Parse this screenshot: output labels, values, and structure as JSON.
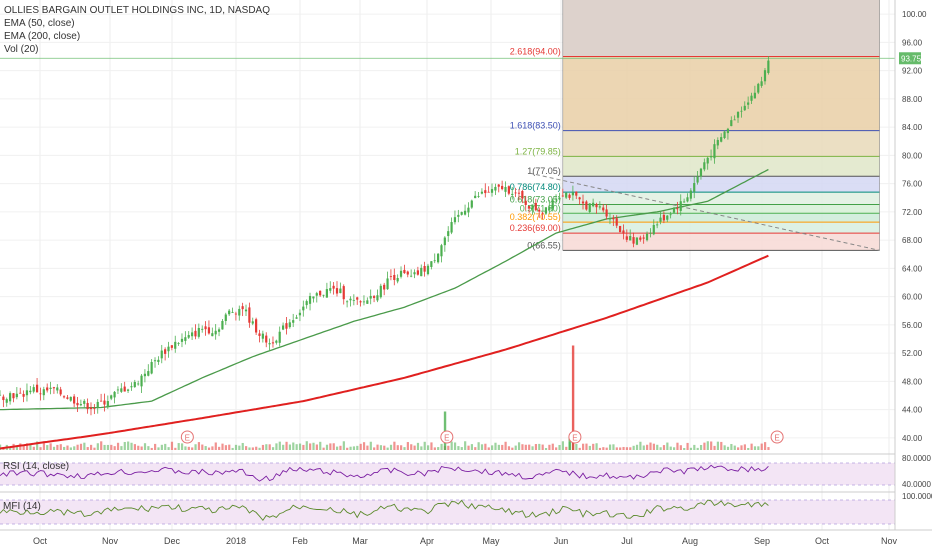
{
  "header": {
    "title": "OLLIES BARGAIN OUTLET HOLDINGS INC, 1D, NASDAQ",
    "indicators": [
      "EMA (50, close)",
      "EMA (200, close)",
      "Vol (20)"
    ]
  },
  "panes": {
    "rsi_label": "RSI (14, close)",
    "mfi_label": "MFI (14)"
  },
  "colors": {
    "up": "#4caf50",
    "down": "#e53935",
    "ema50": "#4a9a4a",
    "ema200": "#e0201f",
    "rsi_fill": "#f3e5f5",
    "rsi_line": "#7b1fa2",
    "mfi_line": "#5b8a2c",
    "price_line": "#66bb6a",
    "earnings_badge": "#e57373"
  },
  "chart_data": {
    "type": "candlestick",
    "title": "OLLIES BARGAIN OUTLET HOLDINGS INC, 1D, NASDAQ",
    "x_ticks": [
      "Oct",
      "Nov",
      "Dec",
      "2018",
      "Feb",
      "Mar",
      "Apr",
      "May",
      "Jun",
      "Jul",
      "Aug",
      "Sep",
      "Oct",
      "Nov"
    ],
    "price_axis": {
      "ticks": [
        "100.00",
        "96.00",
        "92.00",
        "88.00",
        "84.00",
        "80.00",
        "76.00",
        "72.00",
        "68.00",
        "64.00",
        "60.00",
        "56.00",
        "52.00",
        "48.00",
        "44.00",
        "40.00"
      ],
      "range": [
        38.0,
        102.0
      ]
    },
    "last_price": "93.75",
    "price_path": [
      [
        0,
        45.8
      ],
      [
        3,
        46.2
      ],
      [
        6,
        45.9
      ],
      [
        9,
        47.0
      ],
      [
        12,
        46.5
      ],
      [
        16,
        46.8
      ],
      [
        20,
        45.8
      ],
      [
        24,
        44.9
      ],
      [
        28,
        44.3
      ],
      [
        32,
        45.5
      ],
      [
        36,
        46.8
      ],
      [
        40,
        47.6
      ],
      [
        44,
        49.8
      ],
      [
        48,
        52.0
      ],
      [
        52,
        53.5
      ],
      [
        56,
        54.2
      ],
      [
        60,
        55.5
      ],
      [
        64,
        55.2
      ],
      [
        68,
        57.8
      ],
      [
        72,
        58.5
      ],
      [
        75,
        56.0
      ],
      [
        78,
        54.2
      ],
      [
        80,
        53.4
      ],
      [
        83,
        54.8
      ],
      [
        86,
        56.5
      ],
      [
        89,
        58.0
      ],
      [
        92,
        59.5
      ],
      [
        95,
        60.5
      ],
      [
        98,
        61.0
      ],
      [
        101,
        60.6
      ],
      [
        104,
        59.4
      ],
      [
        107,
        58.9
      ],
      [
        110,
        60.0
      ],
      [
        113,
        61.0
      ],
      [
        116,
        62.8
      ],
      [
        119,
        63.2
      ],
      [
        122,
        62.6
      ],
      [
        125,
        63.6
      ],
      [
        128,
        64.6
      ],
      [
        131,
        67.5
      ],
      [
        134,
        70.0
      ],
      [
        137,
        72.0
      ],
      [
        140,
        73.6
      ],
      [
        143,
        74.6
      ],
      [
        146,
        74.9
      ],
      [
        149,
        75.4
      ],
      [
        152,
        75.0
      ],
      [
        155,
        73.6
      ],
      [
        158,
        72.6
      ],
      [
        161,
        72.2
      ],
      [
        164,
        73.8
      ],
      [
        167,
        74.8
      ],
      [
        170,
        74.2
      ],
      [
        173,
        73.0
      ],
      [
        176,
        72.8
      ],
      [
        179,
        72.4
      ],
      [
        182,
        70.8
      ],
      [
        185,
        69.0
      ],
      [
        188,
        67.6
      ],
      [
        191,
        68.5
      ],
      [
        194,
        70.0
      ],
      [
        197,
        71.2
      ],
      [
        200,
        72.5
      ],
      [
        203,
        73.5
      ],
      [
        206,
        76.0
      ],
      [
        209,
        79.0
      ],
      [
        212,
        81.0
      ],
      [
        215,
        83.2
      ],
      [
        218,
        85.5
      ],
      [
        221,
        87.4
      ],
      [
        224,
        89.0
      ],
      [
        226,
        90.5
      ],
      [
        228,
        93.75
      ]
    ],
    "ema50_path": [
      [
        0,
        44.0
      ],
      [
        30,
        44.3
      ],
      [
        45,
        45.2
      ],
      [
        60,
        48.5
      ],
      [
        75,
        51.5
      ],
      [
        90,
        54.0
      ],
      [
        105,
        56.5
      ],
      [
        120,
        58.5
      ],
      [
        135,
        61.2
      ],
      [
        150,
        65.0
      ],
      [
        165,
        69.0
      ],
      [
        180,
        71.0
      ],
      [
        195,
        72.0
      ],
      [
        210,
        73.5
      ],
      [
        228,
        78.0
      ]
    ],
    "ema200_path": [
      [
        0,
        38.5
      ],
      [
        30,
        40.5
      ],
      [
        60,
        42.8
      ],
      [
        90,
        45.2
      ],
      [
        120,
        48.5
      ],
      [
        150,
        52.5
      ],
      [
        180,
        57.0
      ],
      [
        195,
        59.5
      ],
      [
        210,
        62.0
      ],
      [
        228,
        65.8
      ]
    ],
    "trend_line": {
      "from": [
        157,
        77.5
      ],
      "to": [
        261,
        66.55
      ]
    },
    "volume": {
      "earnings_markers_at": [
        55,
        132,
        170,
        230
      ],
      "spikes": [
        [
          132,
          0.35
        ],
        [
          170,
          0.95
        ],
        [
          169,
          0.12
        ]
      ]
    },
    "fibonacci": {
      "anchor_x": 167,
      "end_x": 261,
      "levels": [
        {
          "label": "2.618(94.00)",
          "price": 94.0,
          "color": "#e53935",
          "fill": "#e9cfa6"
        },
        {
          "label": "1.618(83.50)",
          "price": 83.5,
          "color": "#3f51b5",
          "fill": "#e7d9b8"
        },
        {
          "label": "1.27(79.85)",
          "price": 79.85,
          "color": "#7cb342",
          "fill": "#dfe6c8"
        },
        {
          "label": "1(77.05)",
          "price": 77.05,
          "color": "#555555",
          "fill": "#d3d7f3"
        },
        {
          "label": "0.786(74.80)",
          "price": 74.8,
          "color": "#00897b",
          "fill": "#e0f0e0"
        },
        {
          "label": "0.618(73.05)",
          "price": 73.05,
          "color": "#43a047",
          "fill": "#d6f0d6"
        },
        {
          "label": "0.5(71.80)",
          "price": 71.8,
          "color": "#4caf50",
          "fill": "#cdebd8"
        },
        {
          "label": "0.382(70.55)",
          "price": 70.55,
          "color": "#ff9800",
          "fill": "#d7efe0"
        },
        {
          "label": "0.236(69.00)",
          "price": 69.0,
          "color": "#e53935",
          "fill": "#f7d9d5"
        },
        {
          "label": "0(66.55)",
          "price": 66.55,
          "color": "#555555",
          "fill": "#f0e6cf"
        }
      ],
      "top_band_fill": "#ddd2cc"
    },
    "rsi": {
      "ticks": [
        "80.0000",
        "40.0000"
      ]
    },
    "mfi": {
      "ticks": [
        "100.0000"
      ]
    }
  }
}
